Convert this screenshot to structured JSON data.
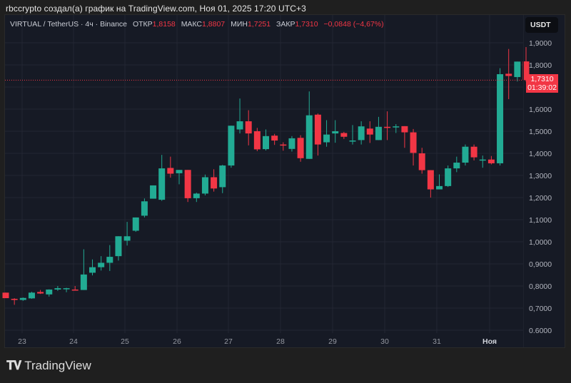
{
  "caption": "rbccrypto создал(а) график на TradingView.com, Ноя 01, 2025 17:20 UTC+3",
  "legend": {
    "symbol": "VIRTUAL / TetherUS · 4ч · Binance",
    "open_label": "ОТКР",
    "open_value": "1,8158",
    "high_label": "МАКС",
    "high_value": "1,8807",
    "low_label": "МИН",
    "low_value": "1,7251",
    "close_label": "ЗАКР",
    "close_value": "1,7310",
    "change": "−0,0848 (−4,67%)"
  },
  "currency_button": "USDT",
  "price_tag": {
    "price": "1,7310",
    "countdown": "01:39:02"
  },
  "colors": {
    "up": "#22ab94",
    "down": "#f23645",
    "background": "#161a25",
    "grid": "#232632"
  },
  "logo": {
    "mark": "TV",
    "name": "TradingView"
  },
  "chart_data": {
    "type": "candlestick",
    "title": "VIRTUAL / TetherUS · 4ч · Binance",
    "xlabel": "",
    "ylabel": "USDT",
    "ylim": [
      0.6,
      1.9
    ],
    "y_ticks": [
      "1,9000",
      "1,8000",
      "1,6000",
      "1,5000",
      "1,4000",
      "1,3000",
      "1,2000",
      "1,1000",
      "1,0000",
      "0,9000",
      "0,8000",
      "0,7000",
      "0.6000"
    ],
    "x_ticks": [
      "23",
      "24",
      "25",
      "26",
      "27",
      "28",
      "29",
      "30",
      "31",
      "Ноя"
    ],
    "grid": true,
    "current_price": 1.731,
    "candles": [
      {
        "o": 0.77,
        "h": 0.77,
        "l": 0.745,
        "c": 0.745
      },
      {
        "o": 0.742,
        "h": 0.745,
        "l": 0.715,
        "c": 0.737
      },
      {
        "o": 0.737,
        "h": 0.748,
        "l": 0.733,
        "c": 0.746
      },
      {
        "o": 0.744,
        "h": 0.774,
        "l": 0.742,
        "c": 0.77
      },
      {
        "o": 0.773,
        "h": 0.782,
        "l": 0.764,
        "c": 0.766
      },
      {
        "o": 0.762,
        "h": 0.785,
        "l": 0.752,
        "c": 0.784
      },
      {
        "o": 0.784,
        "h": 0.8,
        "l": 0.778,
        "c": 0.79
      },
      {
        "o": 0.788,
        "h": 0.792,
        "l": 0.772,
        "c": 0.79
      },
      {
        "o": 0.784,
        "h": 0.8,
        "l": 0.78,
        "c": 0.782
      },
      {
        "o": 0.782,
        "h": 0.966,
        "l": 0.782,
        "c": 0.852
      },
      {
        "o": 0.86,
        "h": 0.92,
        "l": 0.848,
        "c": 0.885
      },
      {
        "o": 0.885,
        "h": 0.935,
        "l": 0.87,
        "c": 0.905
      },
      {
        "o": 0.905,
        "h": 0.985,
        "l": 0.868,
        "c": 0.932
      },
      {
        "o": 0.935,
        "h": 1.02,
        "l": 0.915,
        "c": 1.025
      },
      {
        "o": 1.005,
        "h": 1.09,
        "l": 0.983,
        "c": 1.025
      },
      {
        "o": 1.05,
        "h": 1.11,
        "l": 1.045,
        "c": 1.11
      },
      {
        "o": 1.118,
        "h": 1.196,
        "l": 1.11,
        "c": 1.183
      },
      {
        "o": 1.195,
        "h": 1.245,
        "l": 1.195,
        "c": 1.255
      },
      {
        "o": 1.19,
        "h": 1.393,
        "l": 1.185,
        "c": 1.332
      },
      {
        "o": 1.334,
        "h": 1.385,
        "l": 1.29,
        "c": 1.308
      },
      {
        "o": 1.31,
        "h": 1.325,
        "l": 1.26,
        "c": 1.325
      },
      {
        "o": 1.325,
        "h": 1.325,
        "l": 1.18,
        "c": 1.197
      },
      {
        "o": 1.197,
        "h": 1.222,
        "l": 1.18,
        "c": 1.218
      },
      {
        "o": 1.218,
        "h": 1.304,
        "l": 1.21,
        "c": 1.292
      },
      {
        "o": 1.292,
        "h": 1.328,
        "l": 1.227,
        "c": 1.241
      },
      {
        "o": 1.247,
        "h": 1.348,
        "l": 1.22,
        "c": 1.345
      },
      {
        "o": 1.345,
        "h": 1.51,
        "l": 1.335,
        "c": 1.525
      },
      {
        "o": 1.508,
        "h": 1.648,
        "l": 1.49,
        "c": 1.545
      },
      {
        "o": 1.545,
        "h": 1.595,
        "l": 1.436,
        "c": 1.49
      },
      {
        "o": 1.5,
        "h": 1.515,
        "l": 1.41,
        "c": 1.418
      },
      {
        "o": 1.419,
        "h": 1.508,
        "l": 1.413,
        "c": 1.478
      },
      {
        "o": 1.48,
        "h": 1.488,
        "l": 1.438,
        "c": 1.458
      },
      {
        "o": 1.44,
        "h": 1.45,
        "l": 1.412,
        "c": 1.435
      },
      {
        "o": 1.42,
        "h": 1.478,
        "l": 1.408,
        "c": 1.468
      },
      {
        "o": 1.47,
        "h": 1.482,
        "l": 1.362,
        "c": 1.378
      },
      {
        "o": 1.375,
        "h": 1.68,
        "l": 1.375,
        "c": 1.572
      },
      {
        "o": 1.575,
        "h": 1.58,
        "l": 1.39,
        "c": 1.44
      },
      {
        "o": 1.45,
        "h": 1.55,
        "l": 1.43,
        "c": 1.485
      },
      {
        "o": 1.49,
        "h": 1.55,
        "l": 1.448,
        "c": 1.5
      },
      {
        "o": 1.492,
        "h": 1.497,
        "l": 1.465,
        "c": 1.475
      },
      {
        "o": 1.455,
        "h": 1.528,
        "l": 1.44,
        "c": 1.458
      },
      {
        "o": 1.46,
        "h": 1.545,
        "l": 1.44,
        "c": 1.522
      },
      {
        "o": 1.512,
        "h": 1.545,
        "l": 1.447,
        "c": 1.485
      },
      {
        "o": 1.46,
        "h": 1.565,
        "l": 1.46,
        "c": 1.52
      },
      {
        "o": 1.52,
        "h": 1.59,
        "l": 1.46,
        "c": 1.515
      },
      {
        "o": 1.518,
        "h": 1.532,
        "l": 1.492,
        "c": 1.522
      },
      {
        "o": 1.523,
        "h": 1.523,
        "l": 1.425,
        "c": 1.495
      },
      {
        "o": 1.495,
        "h": 1.51,
        "l": 1.345,
        "c": 1.402
      },
      {
        "o": 1.4,
        "h": 1.425,
        "l": 1.308,
        "c": 1.324
      },
      {
        "o": 1.324,
        "h": 1.31,
        "l": 1.2,
        "c": 1.237
      },
      {
        "o": 1.237,
        "h": 1.305,
        "l": 1.237,
        "c": 1.252
      },
      {
        "o": 1.252,
        "h": 1.345,
        "l": 1.248,
        "c": 1.332
      },
      {
        "o": 1.332,
        "h": 1.385,
        "l": 1.315,
        "c": 1.358
      },
      {
        "o": 1.358,
        "h": 1.44,
        "l": 1.345,
        "c": 1.43
      },
      {
        "o": 1.43,
        "h": 1.44,
        "l": 1.368,
        "c": 1.382
      },
      {
        "o": 1.372,
        "h": 1.39,
        "l": 1.335,
        "c": 1.372
      },
      {
        "o": 1.372,
        "h": 1.388,
        "l": 1.35,
        "c": 1.355
      },
      {
        "o": 1.355,
        "h": 1.785,
        "l": 1.345,
        "c": 1.758
      },
      {
        "o": 1.76,
        "h": 1.872,
        "l": 1.645,
        "c": 1.75
      },
      {
        "o": 1.745,
        "h": 1.812,
        "l": 1.725,
        "c": 1.815
      },
      {
        "o": 1.8158,
        "h": 1.8807,
        "l": 1.7251,
        "c": 1.731
      }
    ]
  }
}
